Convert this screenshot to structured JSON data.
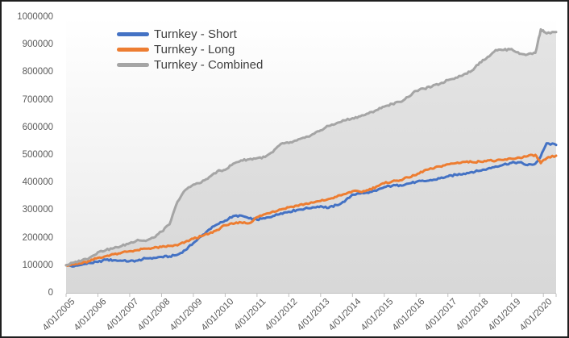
{
  "chart_data": {
    "type": "line",
    "title": "",
    "legend_position": "top-left-inside",
    "gridlines": false,
    "plot_background_top": "#FFFFFF",
    "plot_background_bottom": "#E9E9E9",
    "axis_text_color": "#595959",
    "legend_text_color": "#404040",
    "y_axis": {
      "min": 0,
      "max": 1000000,
      "tick_step": 100000,
      "tick_labels": [
        "0",
        "100000",
        "200000",
        "300000",
        "400000",
        "500000",
        "600000",
        "700000",
        "800000",
        "900000",
        "1000000"
      ]
    },
    "x_axis": {
      "tick_labels": [
        "4/01/2005",
        "4/01/2006",
        "4/01/2007",
        "4/01/2008",
        "4/01/2009",
        "4/01/2010",
        "4/01/2011",
        "4/01/2012",
        "4/01/2013",
        "4/01/2014",
        "4/01/2015",
        "4/01/2016",
        "4/01/2017",
        "4/01/2018",
        "4/01/2019",
        "4/01/2020"
      ],
      "start_date": "4/01/2005",
      "end_years_after_start": 15.4
    },
    "x_years_since_start": [
      0,
      0.25,
      0.5,
      0.75,
      1,
      1.25,
      1.5,
      1.75,
      2,
      2.25,
      2.5,
      2.75,
      3,
      3.25,
      3.5,
      3.75,
      4,
      4.25,
      4.5,
      4.75,
      5,
      5.25,
      5.5,
      5.75,
      6,
      6.25,
      6.5,
      6.75,
      7,
      7.25,
      7.5,
      7.75,
      8,
      8.25,
      8.5,
      8.75,
      9,
      9.25,
      9.5,
      9.75,
      10,
      10.25,
      10.5,
      10.75,
      11,
      11.25,
      11.5,
      11.75,
      12,
      12.25,
      12.5,
      12.75,
      13,
      13.25,
      13.5,
      13.75,
      14,
      14.25,
      14.5,
      14.75,
      14.92,
      15.1,
      15.4
    ],
    "series": [
      {
        "name": "Turnkey - Short",
        "color": "#4472C4",
        "style": "line",
        "values": [
          100000,
          96000,
          102000,
          108000,
          112000,
          120000,
          118000,
          116000,
          115000,
          117000,
          125000,
          127000,
          130000,
          132000,
          138000,
          155000,
          180000,
          205000,
          230000,
          248000,
          262000,
          278000,
          280000,
          270000,
          265000,
          270000,
          278000,
          288000,
          294000,
          300000,
          305000,
          310000,
          314000,
          308000,
          318000,
          330000,
          356000,
          360000,
          362000,
          370000,
          383000,
          388000,
          390000,
          396000,
          402000,
          405000,
          408000,
          415000,
          422000,
          428000,
          432000,
          438000,
          442000,
          450000,
          458000,
          465000,
          471000,
          473000,
          463000,
          468000,
          495000,
          542000,
          536000
        ]
      },
      {
        "name": "Turnkey - Long",
        "color": "#ED7D31",
        "style": "line",
        "values": [
          100000,
          103000,
          107000,
          115000,
          127000,
          133000,
          140000,
          146000,
          151000,
          155000,
          160000,
          163000,
          166000,
          170000,
          172000,
          185000,
          196000,
          205000,
          215000,
          228000,
          245000,
          250000,
          255000,
          252000,
          274000,
          285000,
          295000,
          302000,
          310000,
          316000,
          322000,
          327000,
          333000,
          340000,
          348000,
          358000,
          368000,
          366000,
          372000,
          385000,
          397000,
          404000,
          408000,
          418000,
          427000,
          443000,
          450000,
          458000,
          466000,
          470000,
          475000,
          474000,
          476000,
          480000,
          478000,
          482000,
          486000,
          490000,
          495000,
          500000,
          470000,
          488000,
          497000
        ]
      },
      {
        "name": "Turnkey - Combined",
        "color": "#A5A5A5",
        "style": "line_with_area",
        "area_fill_top": "#E4E4E4",
        "area_fill_bottom": "#D8D8D8",
        "values": [
          100000,
          110000,
          118000,
          128000,
          147000,
          155000,
          162000,
          170000,
          180000,
          192000,
          188000,
          200000,
          222000,
          248000,
          330000,
          373000,
          392000,
          400000,
          420000,
          440000,
          446000,
          468000,
          480000,
          484000,
          488000,
          492000,
          510000,
          540000,
          543000,
          552000,
          562000,
          575000,
          589000,
          605000,
          615000,
          625000,
          633000,
          640000,
          650000,
          662000,
          675000,
          685000,
          692000,
          710000,
          732000,
          740000,
          748000,
          758000,
          771000,
          780000,
          792000,
          805000,
          835000,
          855000,
          880000,
          880000,
          884000,
          866000,
          864000,
          870000,
          955000,
          940000,
          945000
        ]
      }
    ]
  }
}
